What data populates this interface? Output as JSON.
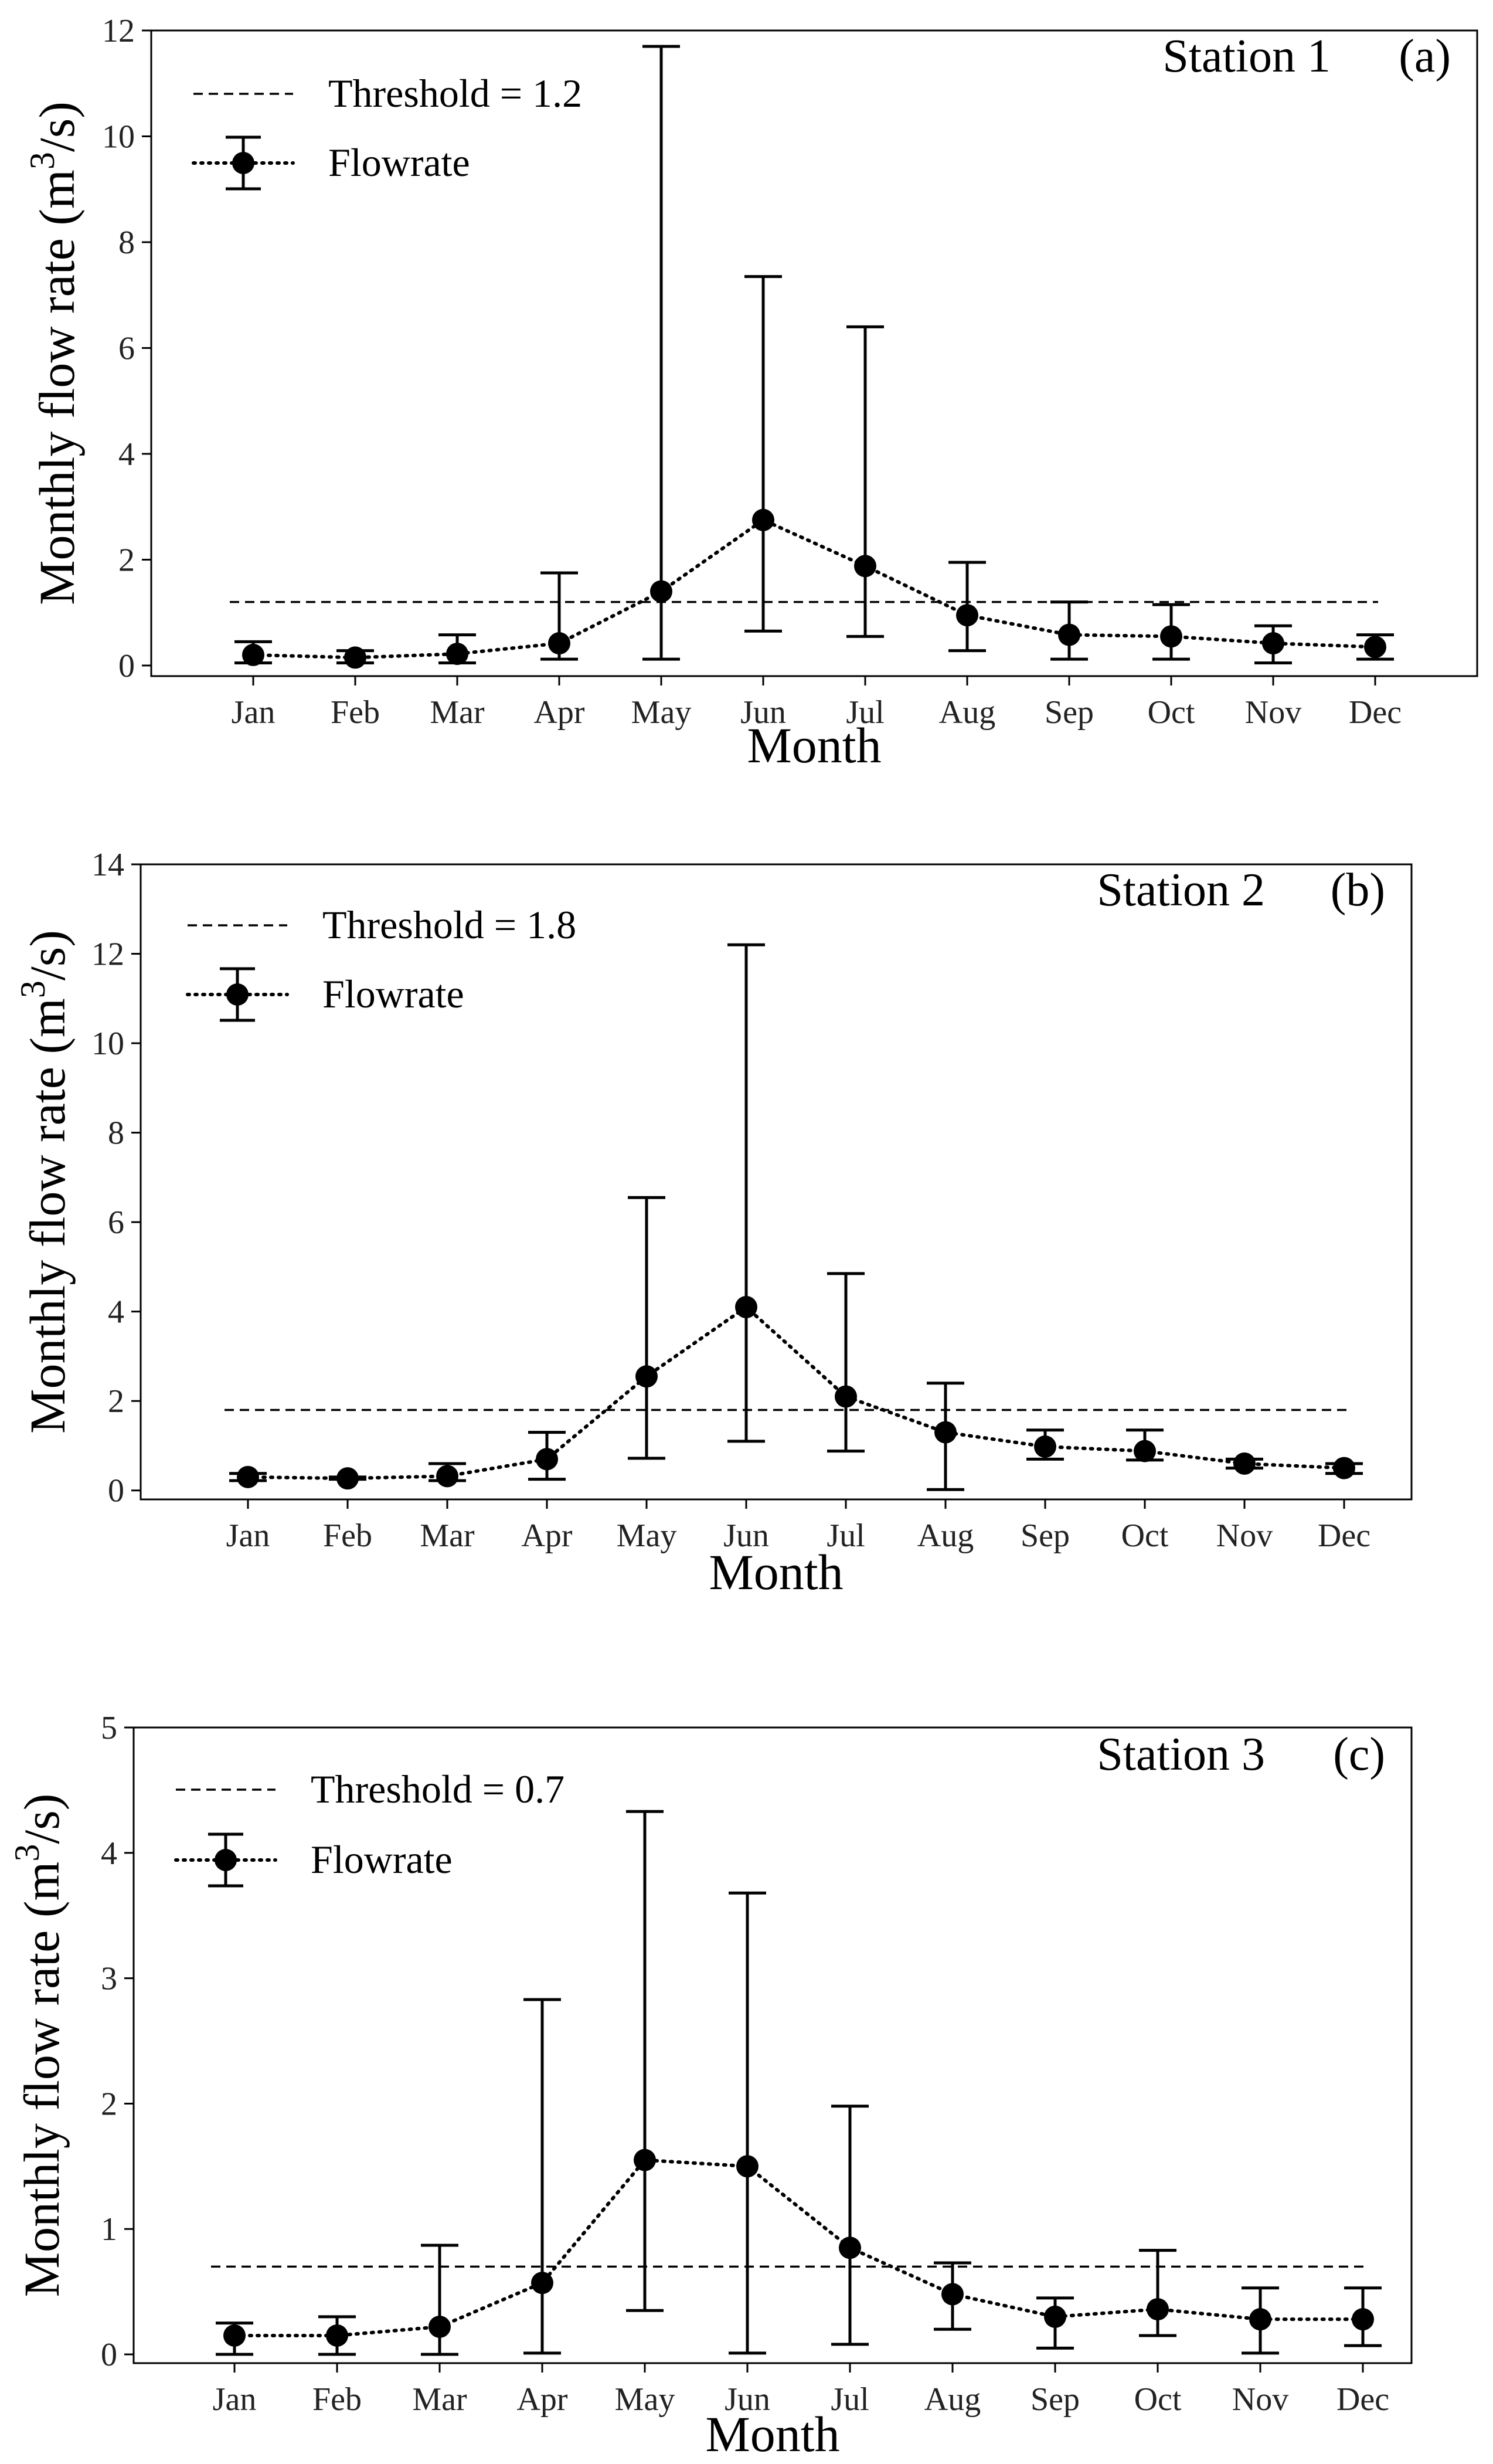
{
  "chart_data": [
    {
      "type": "line",
      "panel_label": "(a)",
      "station": "Station 1",
      "categories": [
        "Jan",
        "Feb",
        "Mar",
        "Apr",
        "May",
        "Jun",
        "Jul",
        "Aug",
        "Sep",
        "Oct",
        "Nov",
        "Dec"
      ],
      "series": [
        {
          "name": "Flowrate",
          "values": [
            0.2,
            0.15,
            0.22,
            0.42,
            1.4,
            2.75,
            1.88,
            0.95,
            0.58,
            0.55,
            0.42,
            0.35
          ],
          "err_low": [
            0.05,
            0.05,
            0.05,
            0.12,
            0.12,
            0.65,
            0.55,
            0.28,
            0.12,
            0.12,
            0.05,
            0.12
          ],
          "err_high": [
            0.45,
            0.28,
            0.58,
            1.75,
            11.7,
            7.35,
            6.4,
            1.95,
            1.2,
            1.15,
            0.75,
            0.58
          ]
        }
      ],
      "threshold": 1.2,
      "threshold_label": "Threshold = 1.2",
      "legend": [
        "Threshold = 1.2",
        "Flowrate"
      ],
      "xlabel": "Month",
      "ylabel": "Monthly flow rate (m³/s)",
      "ylabel_main": "Monthly flow rate (m",
      "ylabel_sup": "3",
      "ylabel_end": "/s)",
      "ylim": [
        -0.2,
        12
      ],
      "yticks": [
        "0",
        "2",
        "4",
        "6",
        "8",
        "10",
        "12"
      ]
    },
    {
      "type": "line",
      "panel_label": "(b)",
      "station": "Station 2",
      "categories": [
        "Jan",
        "Feb",
        "Mar",
        "Apr",
        "May",
        "Jun",
        "Jul",
        "Aug",
        "Sep",
        "Oct",
        "Nov",
        "Dec"
      ],
      "series": [
        {
          "name": "Flowrate",
          "values": [
            0.3,
            0.27,
            0.32,
            0.7,
            2.55,
            4.1,
            2.1,
            1.3,
            0.98,
            0.88,
            0.6,
            0.5
          ],
          "err_low": [
            0.22,
            0.25,
            0.22,
            0.25,
            0.72,
            1.1,
            0.88,
            0.02,
            0.7,
            0.68,
            0.5,
            0.38
          ],
          "err_high": [
            0.38,
            0.3,
            0.6,
            1.3,
            6.55,
            12.2,
            4.85,
            2.4,
            1.35,
            1.35,
            0.7,
            0.6
          ]
        }
      ],
      "threshold": 1.8,
      "threshold_label": "Threshold = 1.8",
      "legend": [
        "Threshold = 1.8",
        "Flowrate"
      ],
      "xlabel": "Month",
      "ylabel": "Monthly flow rate (m³/s)",
      "ylabel_main": "Monthly flow rate (m",
      "ylabel_sup": "3",
      "ylabel_end": "/s)",
      "ylim": [
        -0.2,
        14
      ],
      "yticks": [
        "0",
        "2",
        "4",
        "6",
        "8",
        "10",
        "12",
        "14"
      ]
    },
    {
      "type": "line",
      "panel_label": "(c)",
      "station": "Station 3",
      "categories": [
        "Jan",
        "Feb",
        "Mar",
        "Apr",
        "May",
        "Jun",
        "Jul",
        "Aug",
        "Sep",
        "Oct",
        "Nov",
        "Dec"
      ],
      "series": [
        {
          "name": "Flowrate",
          "values": [
            0.15,
            0.15,
            0.22,
            0.57,
            1.55,
            1.5,
            0.85,
            0.48,
            0.3,
            0.36,
            0.28,
            0.28
          ],
          "err_low": [
            0.0,
            0.0,
            0.0,
            0.01,
            0.35,
            0.01,
            0.08,
            0.2,
            0.05,
            0.15,
            0.01,
            0.07
          ],
          "err_high": [
            0.25,
            0.3,
            0.87,
            2.83,
            4.33,
            3.68,
            1.98,
            0.73,
            0.45,
            0.83,
            0.53,
            0.53
          ]
        }
      ],
      "threshold": 0.7,
      "threshold_label": "Threshold = 0.7",
      "legend": [
        "Threshold = 0.7",
        "Flowrate"
      ],
      "xlabel": "Month",
      "ylabel": "Monthly flow rate (m³/s)",
      "ylabel_main": "Monthly flow rate (m",
      "ylabel_sup": "3",
      "ylabel_end": "/s)",
      "ylim": [
        -0.07,
        5
      ],
      "yticks": [
        "0",
        "1",
        "2",
        "3",
        "4",
        "5"
      ]
    }
  ]
}
